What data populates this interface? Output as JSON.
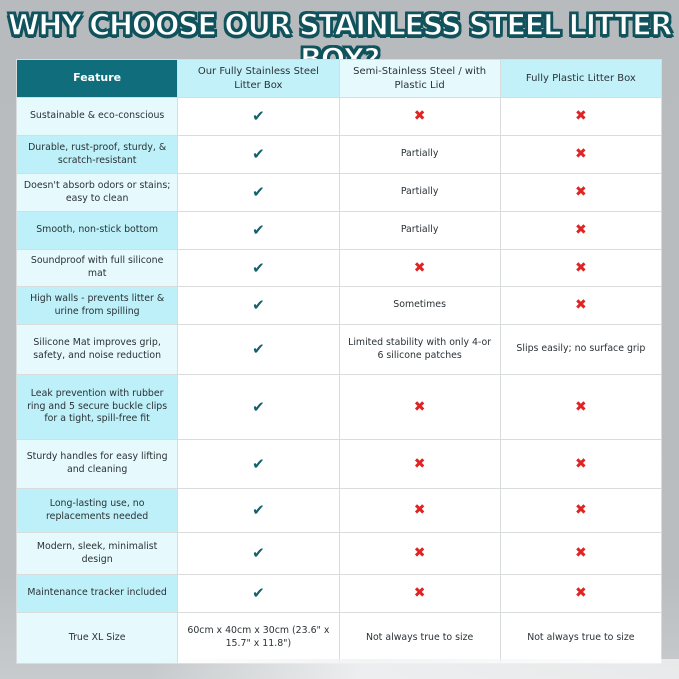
{
  "title": "WHY CHOOSE OUR STAINLESS STEEL LITTER BOX?",
  "colors": {
    "header_teal": "#0f6d7c",
    "check": "#16606c",
    "cross": "#e02424",
    "feature_light": "#e6f9fc",
    "feature_cyan": "#bdf0f8"
  },
  "headers": [
    "Feature",
    "Our Fully Stainless Steel Litter Box",
    "Semi-Stainless Steel / with Plastic Lid",
    "Fully Plastic Litter Box"
  ],
  "rows": [
    {
      "feature": "Sustainable & eco-conscious",
      "ours": "check",
      "semi": "cross",
      "plastic": "cross"
    },
    {
      "feature": "Durable, rust-proof, sturdy, & scratch-resistant",
      "ours": "check",
      "semi": "Partially",
      "plastic": "cross"
    },
    {
      "feature": "Doesn't absorb odors or stains; easy to clean",
      "ours": "check",
      "semi": "Partially",
      "plastic": "cross"
    },
    {
      "feature": "Smooth, non-stick bottom",
      "ours": "check",
      "semi": "Partially",
      "plastic": "cross"
    },
    {
      "feature": "Soundproof with full silicone mat",
      "ours": "check",
      "semi": "cross",
      "plastic": "cross"
    },
    {
      "feature": "High walls - prevents litter & urine from spilling",
      "ours": "check",
      "semi": "Sometimes",
      "plastic": "cross"
    },
    {
      "feature": "Silicone Mat improves grip, safety, and noise reduction",
      "ours": "check",
      "semi": "Limited stability with only 4-or 6 silicone patches",
      "plastic": "Slips easily; no surface grip"
    },
    {
      "feature": "Leak prevention with rubber ring and 5 secure buckle clips for a tight, spill-free fit",
      "ours": "check",
      "semi": "cross",
      "plastic": "cross"
    },
    {
      "feature": "Sturdy handles for easy lifting and cleaning",
      "ours": "check",
      "semi": "cross",
      "plastic": "cross"
    },
    {
      "feature": "Long-lasting use, no replacements needed",
      "ours": "check",
      "semi": "cross",
      "plastic": "cross"
    },
    {
      "feature": "Modern, sleek, minimalist design",
      "ours": "check",
      "semi": "cross",
      "plastic": "cross"
    },
    {
      "feature": "Maintenance tracker included",
      "ours": "check",
      "semi": "cross",
      "plastic": "cross"
    },
    {
      "feature": "True XL Size",
      "ours": "60cm x 40cm x 30cm (23.6\" x 15.7\" x 11.8\")",
      "semi": "Not always true to size",
      "plastic": "Not always true to size"
    }
  ]
}
